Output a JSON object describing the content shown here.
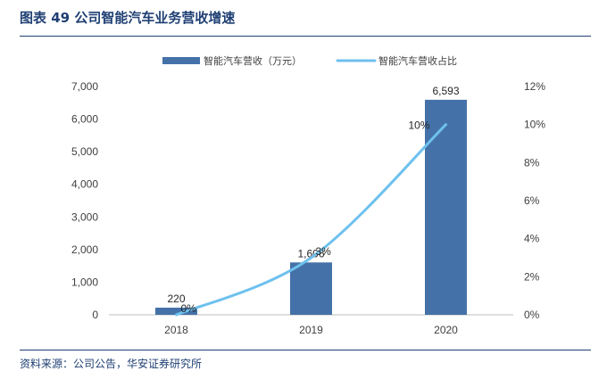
{
  "header": {
    "title": "图表 49 公司智能汽车业务营收增速",
    "source": "资料来源：公司公告，华安证券研究所"
  },
  "chart_data": {
    "type": "bar",
    "categories": [
      "2018",
      "2019",
      "2020"
    ],
    "series": [
      {
        "name": "智能汽车营收（万元）",
        "kind": "bar",
        "axis": "left",
        "values": [
          220,
          1606,
          6593
        ],
        "color": "#4472a8"
      },
      {
        "name": "智能汽车营收占比",
        "kind": "line",
        "axis": "right",
        "values": [
          0,
          3,
          10
        ],
        "color": "#6ec1ee"
      }
    ],
    "bar_labels": [
      "220",
      "1,606",
      "6,593"
    ],
    "line_labels": [
      "0%",
      "3%",
      "10%"
    ],
    "y_left": {
      "min": 0,
      "max": 7000,
      "ticks": [
        "0",
        "1,000",
        "2,000",
        "3,000",
        "4,000",
        "5,000",
        "6,000",
        "7,000"
      ]
    },
    "y_right": {
      "min": 0,
      "max": 12,
      "ticks": [
        "0%",
        "2%",
        "4%",
        "6%",
        "8%",
        "10%",
        "12%"
      ]
    },
    "grid": false,
    "legend_position": "top-center"
  }
}
